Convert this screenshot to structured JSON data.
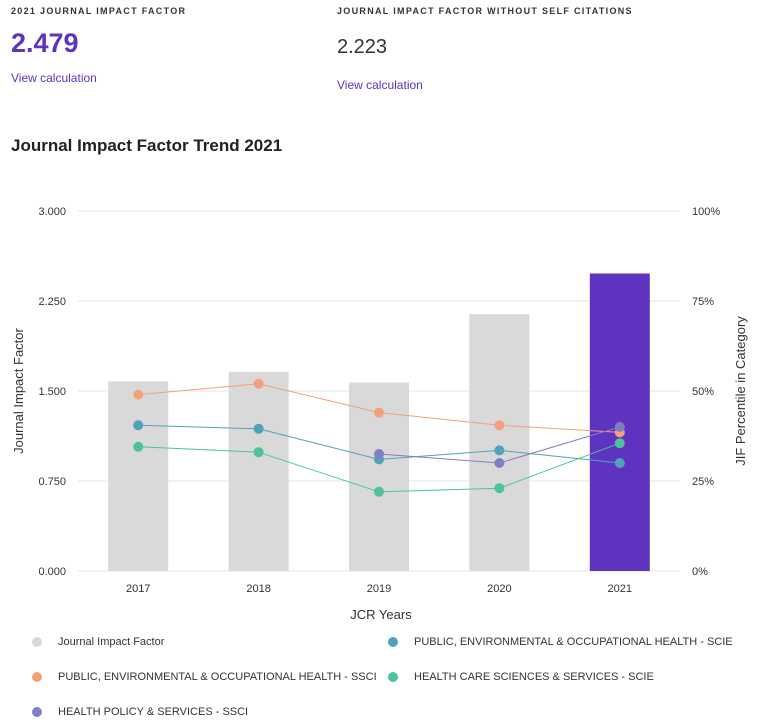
{
  "metrics": [
    {
      "label": "2021 JOURNAL IMPACT FACTOR",
      "value": "2.479",
      "link": "View calculation"
    },
    {
      "label": "JOURNAL IMPACT FACTOR WITHOUT SELF CITATIONS",
      "value": "2.223",
      "link": "View calculation"
    }
  ],
  "chart_title": "Journal Impact Factor Trend 2021",
  "colors": {
    "bar": "#d9d9d9",
    "bar_current": "#5e33bf",
    "ph_ssci": "#f4a07b",
    "ph_scie": "#4fa3b8",
    "hcs_scie": "#4cc39a",
    "hps_ssci": "#7f7fc4"
  },
  "chart_data": {
    "type": "bar",
    "categories": [
      "2017",
      "2018",
      "2019",
      "2020",
      "2021"
    ],
    "xlabel": "JCR Years",
    "ylabel": "Journal Impact Factor",
    "y2label": "JIF Percentile in Category",
    "ylim": [
      0,
      3
    ],
    "y_ticks": [
      "0.000",
      "0.750",
      "1.500",
      "2.250",
      "3.000"
    ],
    "y2lim": [
      0,
      100
    ],
    "y2_ticks": [
      "0%",
      "25%",
      "50%",
      "75%",
      "100%"
    ],
    "grid": true,
    "bars": {
      "name": "Journal Impact Factor",
      "values": [
        1.58,
        1.66,
        1.57,
        2.14,
        2.479
      ]
    },
    "series": [
      {
        "name": "PUBLIC, ENVIRONMENTAL & OCCUPATIONAL HEALTH - SSCI",
        "color_key": "ph_ssci",
        "axis": "percentile",
        "values": [
          49,
          52,
          44,
          40.5,
          38.5
        ]
      },
      {
        "name": "PUBLIC, ENVIRONMENTAL & OCCUPATIONAL HEALTH - SCIE",
        "color_key": "ph_scie",
        "axis": "percentile",
        "values": [
          40.5,
          39.5,
          31,
          33.5,
          30
        ]
      },
      {
        "name": "HEALTH CARE SCIENCES & SERVICES - SCIE",
        "color_key": "hcs_scie",
        "axis": "percentile",
        "values": [
          34.5,
          33,
          22,
          23,
          35.5
        ]
      },
      {
        "name": "HEALTH POLICY & SERVICES - SSCI",
        "color_key": "hps_ssci",
        "axis": "percentile",
        "values": [
          null,
          null,
          32.5,
          30,
          40
        ]
      }
    ]
  },
  "legend": [
    {
      "label": "Journal Impact Factor",
      "color_key": "bar"
    },
    {
      "label": "PUBLIC, ENVIRONMENTAL & OCCUPATIONAL HEALTH - SCIE",
      "color_key": "ph_scie"
    },
    {
      "label": "PUBLIC, ENVIRONMENTAL & OCCUPATIONAL HEALTH - SSCI",
      "color_key": "ph_ssci"
    },
    {
      "label": "HEALTH CARE SCIENCES & SERVICES - SCIE",
      "color_key": "hcs_scie"
    },
    {
      "label": "HEALTH POLICY & SERVICES - SSCI",
      "color_key": "hps_ssci"
    }
  ]
}
